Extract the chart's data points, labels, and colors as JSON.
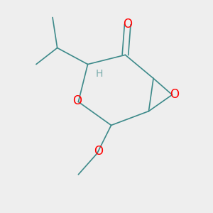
{
  "bg_color": "#eeeeee",
  "line_color": "#3d8a8a",
  "atom_colors": {
    "O": "#ff0000",
    "H": "#7aacac"
  },
  "bond_width": 1.2,
  "font_size_atoms": 12,
  "font_size_H": 10
}
